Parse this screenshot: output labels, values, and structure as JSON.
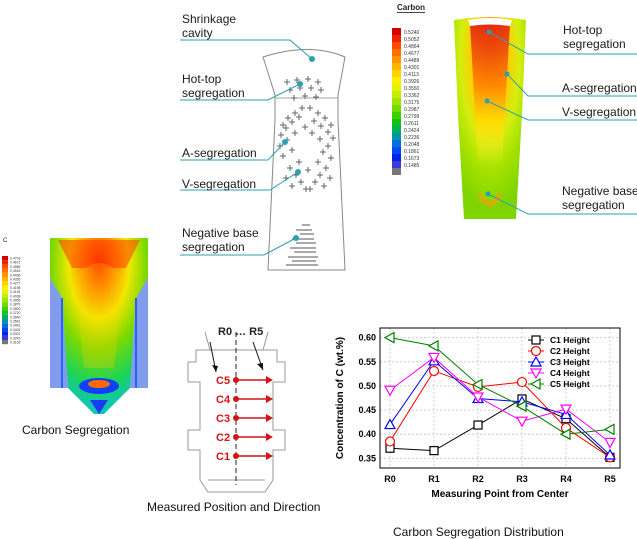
{
  "schematic": {
    "labels": {
      "shrinkage": "Shrinkage\ncavity",
      "hottop": "Hot-top\nsegregation",
      "aseg": "A-segregation",
      "vseg": "V-segregation",
      "negbase": "Negative base\nsegregation"
    }
  },
  "contour": {
    "title": "Carbon",
    "legend_values": [
      "0.5240",
      "0.5052",
      "0.4864",
      "0.4677",
      "0.4489",
      "0.4301",
      "0.4113",
      "0.3926",
      "0.3550",
      "0.3362",
      "0.3175",
      "0.2987",
      "0.2799",
      "0.2611",
      "0.2424",
      "0.2236",
      "0.2048",
      "0.1861",
      "0.1673",
      "0.1485"
    ],
    "labels": {
      "hottop": "Hot-top\nsegregation",
      "aseg": "A-segregation",
      "vseg": "V-segregation",
      "negbase": "Negative base\nsegregation"
    }
  },
  "small_contour": {
    "title": "C",
    "legend_values": [
      "0.4703",
      "0.4672",
      "0.4586",
      "0.4516",
      "0.4436",
      "0.4355",
      "0.4277",
      "0.4198",
      "0.4118",
      "0.4038",
      "0.3959",
      "0.3879",
      "0.3800",
      "0.3720",
      "0.3640",
      "0.3561",
      "0.3481",
      "0.3402",
      "0.3322",
      "0.3243",
      "0.3163"
    ],
    "caption": "Carbon Segregation"
  },
  "measure": {
    "header": "R0 … R5",
    "points": [
      "C5",
      "C4",
      "C3",
      "C2",
      "C1"
    ],
    "caption": "Measured Position and Direction"
  },
  "chart_data": {
    "type": "line",
    "categories": [
      "R0",
      "R1",
      "R2",
      "R3",
      "R4",
      "R5"
    ],
    "xlabel": "Measuring Point from Center",
    "ylabel": "Concentration of C (wt.%)",
    "ylim": [
      0.33,
      0.62
    ],
    "yticks": [
      0.35,
      0.4,
      0.45,
      0.5,
      0.55,
      0.6
    ],
    "ytick_labels": [
      "0.35",
      "0.40",
      "0.45",
      "0.50",
      "0.55",
      "0.60"
    ],
    "legend_position": "top-right",
    "series": [
      {
        "name": "C1 Height",
        "marker": "square",
        "color": "#000000",
        "values": [
          0.371,
          0.366,
          0.419,
          0.473,
          0.432,
          0.352
        ]
      },
      {
        "name": "C2 Height",
        "marker": "circle",
        "color": "#ff0000",
        "values": [
          0.385,
          0.531,
          0.498,
          0.508,
          0.413,
          0.352
        ]
      },
      {
        "name": "C3 Height",
        "marker": "triangle-up",
        "color": "#0000ff",
        "values": [
          0.42,
          0.552,
          0.474,
          0.467,
          0.441,
          0.357
        ]
      },
      {
        "name": "C4 Height",
        "marker": "triangle-down",
        "color": "#ff00ff",
        "values": [
          0.491,
          0.559,
          0.477,
          0.427,
          0.452,
          0.383
        ]
      },
      {
        "name": "C5 Height",
        "marker": "triangle-left",
        "color": "#008000",
        "values": [
          0.6,
          0.583,
          0.503,
          0.458,
          0.4,
          0.41
        ]
      }
    ],
    "caption": "Carbon Segregation Distribution"
  }
}
